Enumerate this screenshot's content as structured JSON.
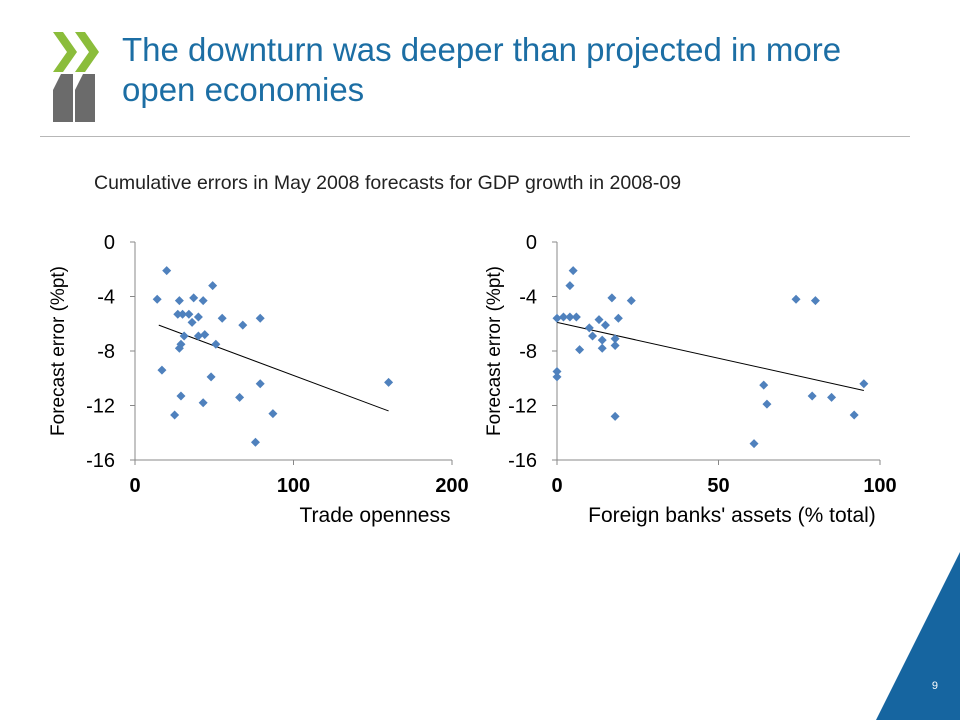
{
  "slide": {
    "title": "The downturn was deeper than projected in more open economies",
    "subtitle": "Cumulative errors in May 2008 forecasts for GDP growth in 2008-09",
    "page_number": "9"
  },
  "colors": {
    "title": "#1c6ea4",
    "logo_light": "#8bbd3b",
    "logo_dark": "#6b6b6b",
    "marker": "#4f81bd",
    "corner": "#1665a0"
  },
  "chart_data": [
    {
      "type": "scatter",
      "title": "",
      "xlabel": "Trade openness",
      "ylabel": "Forecast error (%pt)",
      "xlim": [
        0,
        200
      ],
      "ylim": [
        -16,
        0
      ],
      "xticks": [
        "0",
        "100",
        "200"
      ],
      "yticks": [
        "0",
        "-4",
        "-8",
        "-12",
        "-16"
      ],
      "series": [
        {
          "points": [
            [
              20,
              -2.1
            ],
            [
              14,
              -4.2
            ],
            [
              28,
              -4.3
            ],
            [
              37,
              -4.1
            ],
            [
              43,
              -4.3
            ],
            [
              49,
              -3.2
            ],
            [
              27,
              -5.3
            ],
            [
              30,
              -5.3
            ],
            [
              34,
              -5.3
            ],
            [
              36,
              -5.9
            ],
            [
              40,
              -5.5
            ],
            [
              55,
              -5.6
            ],
            [
              79,
              -5.6
            ],
            [
              68,
              -6.1
            ],
            [
              31,
              -6.9
            ],
            [
              40,
              -6.9
            ],
            [
              44,
              -6.8
            ],
            [
              29,
              -7.5
            ],
            [
              28,
              -7.8
            ],
            [
              51,
              -7.5
            ],
            [
              17,
              -9.4
            ],
            [
              48,
              -9.9
            ],
            [
              79,
              -10.4
            ],
            [
              160,
              -10.3
            ],
            [
              29,
              -11.3
            ],
            [
              66,
              -11.4
            ],
            [
              43,
              -11.8
            ],
            [
              25,
              -12.7
            ],
            [
              87,
              -12.6
            ],
            [
              76,
              -14.7
            ]
          ]
        }
      ],
      "trendline": [
        [
          15,
          -6.1
        ],
        [
          160,
          -12.4
        ]
      ]
    },
    {
      "type": "scatter",
      "title": "",
      "xlabel": "Foreign banks' assets (% total)",
      "ylabel": "Forecast error (%pt)",
      "xlim": [
        0,
        100
      ],
      "ylim": [
        -16,
        0
      ],
      "xticks": [
        "0",
        "50",
        "100"
      ],
      "yticks": [
        "0",
        "-4",
        "-8",
        "-12",
        "-16"
      ],
      "series": [
        {
          "points": [
            [
              5,
              -2.1
            ],
            [
              4,
              -3.2
            ],
            [
              17,
              -4.1
            ],
            [
              23,
              -4.3
            ],
            [
              74,
              -4.2
            ],
            [
              80,
              -4.3
            ],
            [
              0,
              -5.6
            ],
            [
              2,
              -5.5
            ],
            [
              4,
              -5.5
            ],
            [
              6,
              -5.5
            ],
            [
              13,
              -5.7
            ],
            [
              19,
              -5.6
            ],
            [
              10,
              -6.3
            ],
            [
              15,
              -6.1
            ],
            [
              11,
              -6.9
            ],
            [
              14,
              -7.2
            ],
            [
              18,
              -7.1
            ],
            [
              14,
              -7.8
            ],
            [
              7,
              -7.9
            ],
            [
              18,
              -7.6
            ],
            [
              0,
              -9.5
            ],
            [
              0,
              -9.9
            ],
            [
              64,
              -10.5
            ],
            [
              95,
              -10.4
            ],
            [
              79,
              -11.3
            ],
            [
              85,
              -11.4
            ],
            [
              65,
              -11.9
            ],
            [
              92,
              -12.7
            ],
            [
              18,
              -12.8
            ],
            [
              61,
              -14.8
            ]
          ]
        }
      ],
      "trendline": [
        [
          0,
          -5.9
        ],
        [
          95,
          -10.9
        ]
      ]
    }
  ]
}
